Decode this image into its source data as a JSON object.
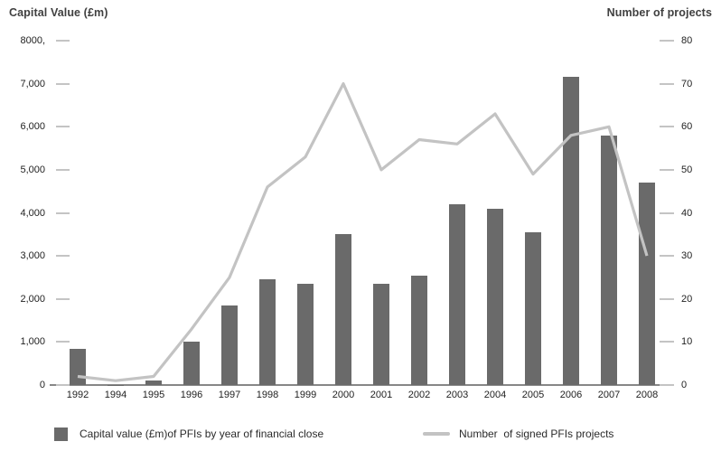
{
  "chart_data": {
    "type": "combo_bar_line",
    "categories": [
      "1992",
      "1994",
      "1995",
      "1996",
      "1997",
      "1998",
      "1999",
      "2000",
      "2001",
      "2002",
      "2003",
      "2004",
      "2005",
      "2006",
      "2007",
      "2008"
    ],
    "series": [
      {
        "name": "Capital value (£m)of PFIs by year of financial close",
        "type": "bar",
        "axis": "left",
        "values": [
          850,
          10,
          100,
          1000,
          1850,
          2450,
          2350,
          3500,
          2350,
          2550,
          4200,
          4100,
          3550,
          7150,
          5800,
          4700
        ]
      },
      {
        "name": "Number  of signed PFIs projects",
        "type": "line",
        "axis": "right",
        "values": [
          2,
          1,
          2,
          13,
          25,
          46,
          53,
          70,
          50,
          57,
          56,
          63,
          49,
          58,
          60,
          30
        ]
      }
    ],
    "left_axis": {
      "title": "Capital Value (£m)",
      "tick_labels": [
        "8000,",
        "7,000",
        "6,000",
        "5,000",
        "4,000",
        "3,000",
        "2,000",
        "1,000",
        "0"
      ],
      "tick_values": [
        8000,
        7000,
        6000,
        5000,
        4000,
        3000,
        2000,
        1000,
        0
      ],
      "range": [
        0,
        8000
      ]
    },
    "right_axis": {
      "title": "Number of projects",
      "tick_labels": [
        "80",
        "70",
        "60",
        "50",
        "40",
        "30",
        "20",
        "10",
        "0"
      ],
      "tick_values": [
        80,
        70,
        60,
        50,
        40,
        30,
        20,
        10,
        0
      ],
      "range": [
        0,
        80
      ]
    },
    "legend": [
      {
        "swatch": "bar",
        "label": "Capital value (£m)of PFIs by year of financial close"
      },
      {
        "swatch": "line",
        "label": "Number  of signed PFIs projects"
      }
    ],
    "grid": "off",
    "legend_position": "bottom",
    "colors": {
      "bar": "#6a6a6a",
      "line": "#c3c3c3",
      "tick_dash": "#c4c4c4",
      "axis_line": "#878787"
    }
  }
}
